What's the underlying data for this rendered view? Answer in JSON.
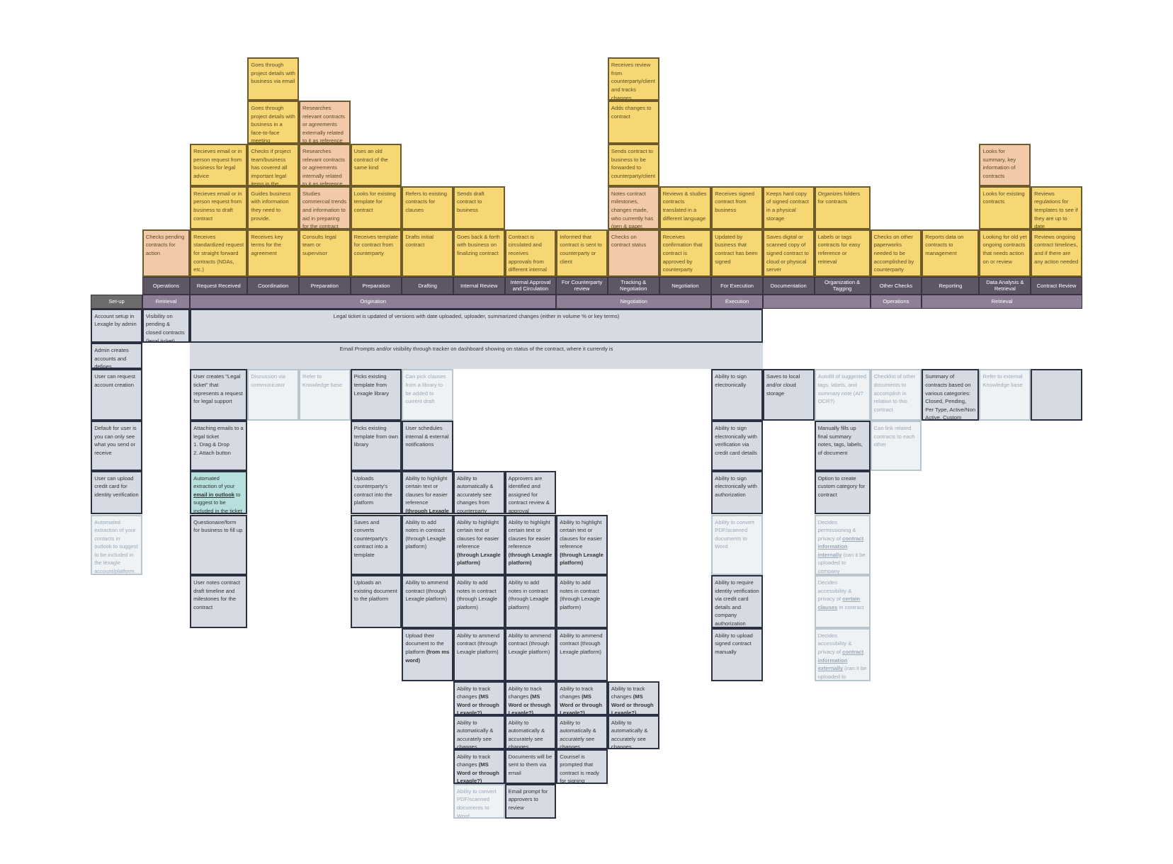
{
  "setup_header": "Set-up",
  "stages": [
    {
      "label": "Operations",
      "cards": [
        {
          "text": "Checks pending contracts for action",
          "tone": "peach"
        }
      ]
    },
    {
      "label": "Request  Received",
      "cards": [
        {
          "text": "Receives standardized request for straight forward contracts (NDAs, etc.)",
          "tone": "yellow"
        },
        {
          "text": "Recieves email or in person request from business to draft contract",
          "tone": "yellow"
        },
        {
          "text": "Recieves email or in person request from business for legal advice",
          "tone": "yellow"
        }
      ]
    },
    {
      "label": "Coordination",
      "cards": [
        {
          "text": "Receives key terms for the agreement",
          "tone": "yellow"
        },
        {
          "text": "Guides business with information they need to provide.",
          "tone": "yellow"
        },
        {
          "text": "Checks if project team/business has covered all important legal items in the contract",
          "tone": "yellow"
        },
        {
          "text": "Goes through project details with business in a face-to-face meeting",
          "tone": "yellow"
        },
        {
          "text": "Goes through project details with business via email",
          "tone": "yellow"
        }
      ]
    },
    {
      "label": "Preparation",
      "cards": [
        {
          "text": "Consults legal team or supervisor",
          "tone": "yellow"
        },
        {
          "text": "Studies commercial trends and information to aid in preparing for the contract",
          "tone": "peach"
        },
        {
          "text": "Researches relevant contracts or agreements internally related to it as reference",
          "tone": "peach"
        },
        {
          "text": "Researches relevant contracts or agreements externally related to it as reference",
          "tone": "peach"
        }
      ]
    },
    {
      "label": "Preparation",
      "cards": [
        {
          "text": "Receives template for contract from counterparty",
          "tone": "yellow"
        },
        {
          "text": "Looks for existing template for contract",
          "tone": "yellow"
        },
        {
          "text": "Uses an old contract of the same kind",
          "tone": "yellow"
        }
      ]
    },
    {
      "label": "Drafting",
      "cards": [
        {
          "text": "Drafts initial contract",
          "tone": "yellow"
        },
        {
          "text": "Refers to existing contracts for clauses",
          "tone": "yellow"
        }
      ]
    },
    {
      "label": "Internal Review",
      "cards": [
        {
          "text": "Goes back & forth with business on finalizing contract",
          "tone": "yellow"
        },
        {
          "text": "Sends draft contract to business",
          "tone": "yellow"
        }
      ]
    },
    {
      "label": "Internal Approval and Circulation",
      "cards": [
        {
          "text": "Contract is circulated and receives approvals from different internal stakeholders",
          "tone": "yellow"
        }
      ]
    },
    {
      "label": "For Counterparty review",
      "cards": [
        {
          "text": "Informed that contract is sent to counterparty or client",
          "tone": "yellow"
        }
      ]
    },
    {
      "label": "Tracking & Negotiation",
      "cards": [
        {
          "text": "Checks on contract status",
          "tone": "peach"
        },
        {
          "text": "Notes contract milestones, changes made, who currently has (pen & paper, calendar)",
          "tone": "peach"
        },
        {
          "text": "Sends contract to business to be forwarded to counterparty/client",
          "tone": "yellow"
        },
        {
          "text": "Adds changes to contract",
          "tone": "yellow"
        },
        {
          "text": "Receives review from counterparty/client and tracks changes",
          "tone": "yellow"
        }
      ]
    },
    {
      "label": "Negotiation",
      "cards": [
        {
          "text": "Receives confirmation that contract is approved by counterparty",
          "tone": "yellow"
        },
        {
          "text": "Reviews & studies contracts translated in a different language",
          "tone": "yellow"
        }
      ]
    },
    {
      "label": "For Execution",
      "cards": [
        {
          "text": "Updated by business that contract has been signed",
          "tone": "yellow"
        },
        {
          "text": "Receives signed contract from business",
          "tone": "yellow"
        }
      ]
    },
    {
      "label": "Documentation",
      "cards": [
        {
          "text": "Saves digital or scanned copy of signed contract to cloud or physical server",
          "tone": "yellow"
        },
        {
          "text": "Keeps hard copy of signed contract in a physical storage",
          "tone": "yellow"
        }
      ]
    },
    {
      "label": "Organization & Tagging",
      "cards": [
        {
          "text": "Labels or tags contracts for easy reference or retrieval",
          "tone": "yellow"
        },
        {
          "text": "Organizes folders for contracts",
          "tone": "yellow"
        }
      ]
    },
    {
      "label": "Other Checks",
      "cards": [
        {
          "text": "Checks on other paperworks needed to be accomplished by counterparty through business or",
          "tone": "yellow"
        }
      ]
    },
    {
      "label": "Reporting",
      "cards": [
        {
          "text": "Reports data on contracts to management",
          "tone": "yellow"
        }
      ]
    },
    {
      "label": "Data Analysis & Retrieval",
      "cards": [
        {
          "text": "Looking for old yet ongoing contracts that needs action on or review",
          "tone": "yellow"
        },
        {
          "text": "Looks for existing contracts",
          "tone": "yellow"
        },
        {
          "text": "Looks for summary, key information of contracts",
          "tone": "peach"
        }
      ]
    },
    {
      "label": "Contract Review",
      "cards": [
        {
          "text": "Reviews ongoing contract timelines, and if there are any action needed",
          "tone": "yellow"
        },
        {
          "text": "Reviews regulations for templates to see if they are up to date",
          "tone": "yellow"
        }
      ]
    }
  ],
  "groups": [
    {
      "label": "Retrieval"
    },
    {
      "label": "Origination"
    },
    {
      "label": "Negotiation"
    },
    {
      "label": "Execution"
    },
    {},
    {
      "label": "Operations"
    },
    {
      "label": "Retrieval"
    }
  ],
  "banners": [
    "Legal ticket is updated of versions with date uploaded, uploader, summarized changes (either in volume % or key terms)",
    "Email Prompts and/or visibility through tracker on dashboard showing on status of the contract, where it currently is"
  ],
  "lanes": [
    [
      {
        "text": "Account setup in Lexagle by admin",
        "tone": "gray"
      },
      {
        "text": "Admin creates accounts and defines",
        "tone": "gray"
      },
      {
        "text": "User can request account creation",
        "tone": "gray"
      },
      {
        "text": "Default for user is you can only see what you send or receive",
        "tone": "gray"
      },
      {
        "text": "User can upload credit card for identity verification",
        "tone": "gray"
      },
      {
        "text": "Automated extraction of your contacts in outlook to suggest to be included in the lexagle account/platform.",
        "tone": "light"
      }
    ],
    [
      {
        "text": "Visibility on pending & closed contracts (legal ticket)",
        "tone": "gray"
      }
    ],
    [
      {
        "text": "User creates \"Legal ticket\" that represents a request for legal support",
        "tone": "gray"
      },
      {
        "text": "Attaching emails to a legal ticket\n1. Drag & Drop\n2. Attach button",
        "tone": "gray"
      },
      {
        "text": [
          "Automated extraction of your ",
          "email in outlook",
          " to suggest to be included in the ticket"
        ],
        "tone": "teal",
        "emphasis": "underline"
      },
      {
        "text": "Questionaire/form for business to fill up",
        "tone": "gray"
      },
      {
        "text": "User notes contract draft timeline and milestones for the contract",
        "tone": "gray"
      }
    ],
    [
      {
        "text": "Discussion via communicator",
        "tone": "light"
      }
    ],
    [
      {
        "text": "Refer to Knowledge base",
        "tone": "light"
      }
    ],
    [
      {
        "text": "Picks existing template from Lexagle library",
        "tone": "gray"
      },
      {
        "text": "Picks existing template from own library",
        "tone": "gray"
      },
      {
        "text": "Uploads counterparty's contract into the platform",
        "tone": "gray"
      },
      {
        "text": "Saves and converts counterparty's contract into a template",
        "tone": "gray"
      },
      {
        "text": "Uploads an existing document to the platform",
        "tone": "gray"
      }
    ],
    [
      {
        "text": "Can pick clauses from a library to be added to current draft",
        "tone": "light"
      },
      {
        "text": "User schedules internal & external notifications",
        "tone": "gray"
      },
      {
        "text": [
          "Ability to highlight certain text or clauses for easier reference ",
          "(through Lexagle platform)"
        ],
        "tone": "gray"
      },
      {
        "text": "Ability to add notes in contract (through Lexagle platform)",
        "tone": "gray"
      },
      {
        "text": "Ability to ammend contract (through Lexagle platform)",
        "tone": "gray"
      },
      {
        "text": [
          "Upload their document to the platform ",
          "(from ms word)"
        ],
        "tone": "gray"
      }
    ],
    [
      {
        "text": "Ability to automatically & accurately see changes from counterparty",
        "tone": "gray"
      },
      {
        "text": [
          "Ability to highlight certain text or clauses for easier reference ",
          "(through Lexagle platform)"
        ],
        "tone": "gray"
      },
      {
        "text": "Ability to add notes in contract (through Lexagle platform)",
        "tone": "gray"
      },
      {
        "text": "Ability to ammend contract (through Lexagle platform)",
        "tone": "gray"
      },
      {
        "text": [
          "Ability to track changes ",
          "(MS Word or through Lexagle?)"
        ],
        "tone": "gray"
      },
      {
        "text": "Ability to automatically & accurately see changes",
        "tone": "gray"
      },
      {
        "text": [
          "Ability to track changes ",
          "(MS Word or through Lexagle?)"
        ],
        "tone": "gray"
      },
      {
        "text": "Ability to convert PDF/scanned documents to Word",
        "tone": "light"
      }
    ],
    [
      {
        "text": "Approvers are identified and assigned for contract review & approval",
        "tone": "gray"
      },
      {
        "text": [
          "Ability to highlight certain text or clauses for easier reference ",
          "(through Lexagle platform)"
        ],
        "tone": "gray"
      },
      {
        "text": "Ability to add notes in contract (through Lexagle platform)",
        "tone": "gray"
      },
      {
        "text": "Ability to ammend contract (through Lexagle platform)",
        "tone": "gray"
      },
      {
        "text": [
          "Ability to track changes ",
          "(MS Word or through Lexagle?)"
        ],
        "tone": "gray"
      },
      {
        "text": "Ability to automatically & accurately see changes",
        "tone": "gray"
      },
      {
        "text": "Documents will be sent to them via email",
        "tone": "gray"
      },
      {
        "text": "Email prompt for approvers to review",
        "tone": "gray"
      }
    ],
    [
      {
        "text": [
          "Ability to highlight certain text or clauses for easier reference ",
          "(through Lexagle platform)"
        ],
        "tone": "gray"
      },
      {
        "text": "Ability to add notes in contract (through Lexagle platform)",
        "tone": "gray"
      },
      {
        "text": "Ability to ammend contract (through Lexagle platform)",
        "tone": "gray"
      },
      {
        "text": [
          "Ability to track changes ",
          "(MS Word or through Lexagle?)"
        ],
        "tone": "gray"
      },
      {
        "text": "Ability to automatically & accurately see changes",
        "tone": "gray"
      },
      {
        "text": "Counsel is prompted that contract is ready for signing",
        "tone": "gray"
      }
    ],
    [
      {
        "text": [
          "Ability to track changes ",
          "(MS Word or through Lexagle?)"
        ],
        "tone": "gray"
      },
      {
        "text": "Ability to automatically & accurately see changes",
        "tone": "gray"
      }
    ],
    [],
    [
      {
        "text": "Ability to sign electronically",
        "tone": "gray"
      },
      {
        "text": "Ability to sign electronically with verification via credit card details",
        "tone": "gray"
      },
      {
        "text": "Ability to sign electronically with authorization",
        "tone": "gray"
      },
      {
        "text": "Ability to convert PDF/scanned documents to Word",
        "tone": "light"
      },
      {
        "text": "Ability to require identity verification via credit card details and company authorization",
        "tone": "gray"
      },
      {
        "text": "Ability to upload signed contract manually",
        "tone": "gray"
      }
    ],
    [
      {
        "text": "Saves to local and/or cloud storage",
        "tone": "gray"
      }
    ],
    [
      {
        "text": "Autofill of suggested tags, labels, and summary note (AI? OCR?)",
        "tone": "light"
      },
      {
        "text": "Manually fills up final summary notes, tags, labels, of document",
        "tone": "gray"
      },
      {
        "text": "Option to create custom category for contract",
        "tone": "gray"
      },
      {
        "text": [
          "Decides permissioning & privacy of ",
          "contract information internally",
          " (can it be uploaded to company database?)"
        ],
        "tone": "light",
        "emphasis": "underline"
      },
      {
        "text": [
          "Decides accessibility & privacy of ",
          "certain clauses",
          " in contract"
        ],
        "tone": "light",
        "emphasis": "underline"
      },
      {
        "text": [
          "Decides accessibility & privacy of ",
          "contract information externally",
          " (can it be uploaded to knowledge base?)"
        ],
        "tone": "light",
        "emphasis": "underline"
      }
    ],
    [
      {
        "text": "Checklist of other documents to accomplish in relation to this contract",
        "tone": "light"
      },
      {
        "text": "Can link related contracts to each other",
        "tone": "light"
      }
    ],
    [
      {
        "text": "Summary of contracts based on various categories: Closed, Pending, Per Type, Active/Non Active, Custom categories",
        "tone": "gray"
      }
    ],
    [
      {
        "text": "Refer to external Knowledge base",
        "tone": "light"
      }
    ],
    [
      {
        "tone": "gray"
      }
    ]
  ]
}
